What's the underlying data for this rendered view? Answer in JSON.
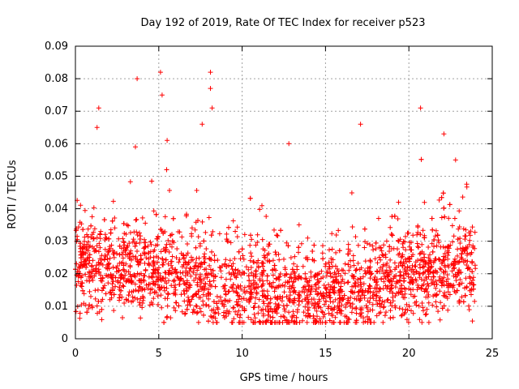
{
  "chart_data": {
    "type": "scatter",
    "title": "Day 192 of 2019, Rate Of TEC Index for receiver p523",
    "xlabel": "GPS time / hours",
    "ylabel": "ROTI / TECUs",
    "xlim": [
      0,
      25
    ],
    "ylim": [
      0,
      0.09
    ],
    "x_ticks": [
      0,
      5,
      10,
      15,
      20,
      25
    ],
    "x_tick_labels": [
      "0",
      "5",
      "10",
      "15",
      "20",
      "25"
    ],
    "y_ticks": [
      0,
      0.01,
      0.02,
      0.03,
      0.04,
      0.05,
      0.06,
      0.07,
      0.08,
      0.09
    ],
    "y_tick_labels": [
      "0",
      "0.01",
      "0.02",
      "0.03",
      "0.04",
      "0.05",
      "0.06",
      "0.07",
      "0.08",
      "0.09"
    ],
    "grid": true,
    "marker": "+",
    "series": [
      {
        "name": "ROTI",
        "color": "#ff0000",
        "x_range": [
          0,
          24
        ],
        "typical_band": [
          0.005,
          0.04
        ],
        "median_approx": 0.018,
        "notable_peaks": [
          {
            "x": 1.4,
            "y": 0.071
          },
          {
            "x": 3.7,
            "y": 0.08
          },
          {
            "x": 5.1,
            "y": 0.082
          },
          {
            "x": 5.2,
            "y": 0.075
          },
          {
            "x": 8.1,
            "y": 0.082
          },
          {
            "x": 8.1,
            "y": 0.077
          },
          {
            "x": 8.2,
            "y": 0.071
          },
          {
            "x": 7.6,
            "y": 0.066
          },
          {
            "x": 12.8,
            "y": 0.06
          },
          {
            "x": 17.1,
            "y": 0.066
          },
          {
            "x": 20.7,
            "y": 0.071
          },
          {
            "x": 22.1,
            "y": 0.063
          },
          {
            "x": 22.8,
            "y": 0.055
          },
          {
            "x": 1.3,
            "y": 0.065
          },
          {
            "x": 3.6,
            "y": 0.059
          },
          {
            "x": 5.5,
            "y": 0.061
          }
        ]
      }
    ]
  }
}
